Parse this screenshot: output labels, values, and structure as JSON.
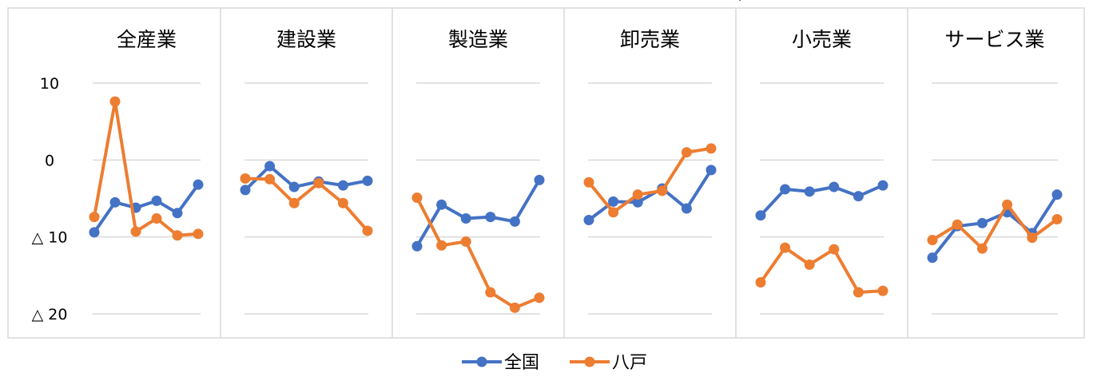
{
  "chart_data": {
    "type": "line",
    "header_note": "(",
    "ylim": [
      -20,
      10
    ],
    "yticks": [
      {
        "value": 10,
        "label": "10"
      },
      {
        "value": 0,
        "label": "0"
      },
      {
        "value": -10,
        "label": "△ 10"
      },
      {
        "value": -20,
        "label": "△ 20"
      }
    ],
    "grid": true,
    "legend_position": "bottom",
    "legend": [
      "全国",
      "八戸"
    ],
    "colors": {
      "全国": "#4472c4",
      "八戸": "#ed7d31"
    },
    "panels": [
      {
        "title": "全産業",
        "series": [
          {
            "name": "全国",
            "values": [
              -9.4,
              -5.5,
              -6.2,
              -5.3,
              -6.9,
              -3.2
            ]
          },
          {
            "name": "八戸",
            "values": [
              -7.4,
              7.6,
              -9.3,
              -7.6,
              -9.8,
              -9.6
            ]
          }
        ]
      },
      {
        "title": "建設業",
        "series": [
          {
            "name": "全国",
            "values": [
              -3.9,
              -0.8,
              -3.5,
              -2.8,
              -3.3,
              -2.7
            ]
          },
          {
            "name": "八戸",
            "values": [
              -2.4,
              -2.5,
              -5.6,
              -3.0,
              -5.6,
              -9.2
            ]
          }
        ]
      },
      {
        "title": "製造業",
        "series": [
          {
            "name": "全国",
            "values": [
              -11.2,
              -5.8,
              -7.6,
              -7.4,
              -8.0,
              -2.6
            ]
          },
          {
            "name": "八戸",
            "values": [
              -4.9,
              -11.1,
              -10.6,
              -17.2,
              -19.2,
              -17.9
            ]
          }
        ]
      },
      {
        "title": "卸売業",
        "series": [
          {
            "name": "全国",
            "values": [
              -7.8,
              -5.4,
              -5.5,
              -3.7,
              -6.3,
              -1.3
            ]
          },
          {
            "name": "八戸",
            "values": [
              -2.9,
              -6.8,
              -4.5,
              -4.0,
              1.0,
              1.5
            ]
          }
        ]
      },
      {
        "title": "小売業",
        "series": [
          {
            "name": "全国",
            "values": [
              -7.2,
              -3.8,
              -4.1,
              -3.5,
              -4.7,
              -3.3
            ]
          },
          {
            "name": "八戸",
            "values": [
              -15.9,
              -11.4,
              -13.6,
              -11.6,
              -17.2,
              -17.0
            ]
          }
        ]
      },
      {
        "title": "サービス業",
        "series": [
          {
            "name": "全国",
            "values": [
              -12.7,
              -8.6,
              -8.2,
              -6.8,
              -9.5,
              -4.5
            ]
          },
          {
            "name": "八戸",
            "values": [
              -10.4,
              -8.4,
              -11.5,
              -5.8,
              -10.1,
              -7.7
            ]
          }
        ]
      }
    ]
  }
}
